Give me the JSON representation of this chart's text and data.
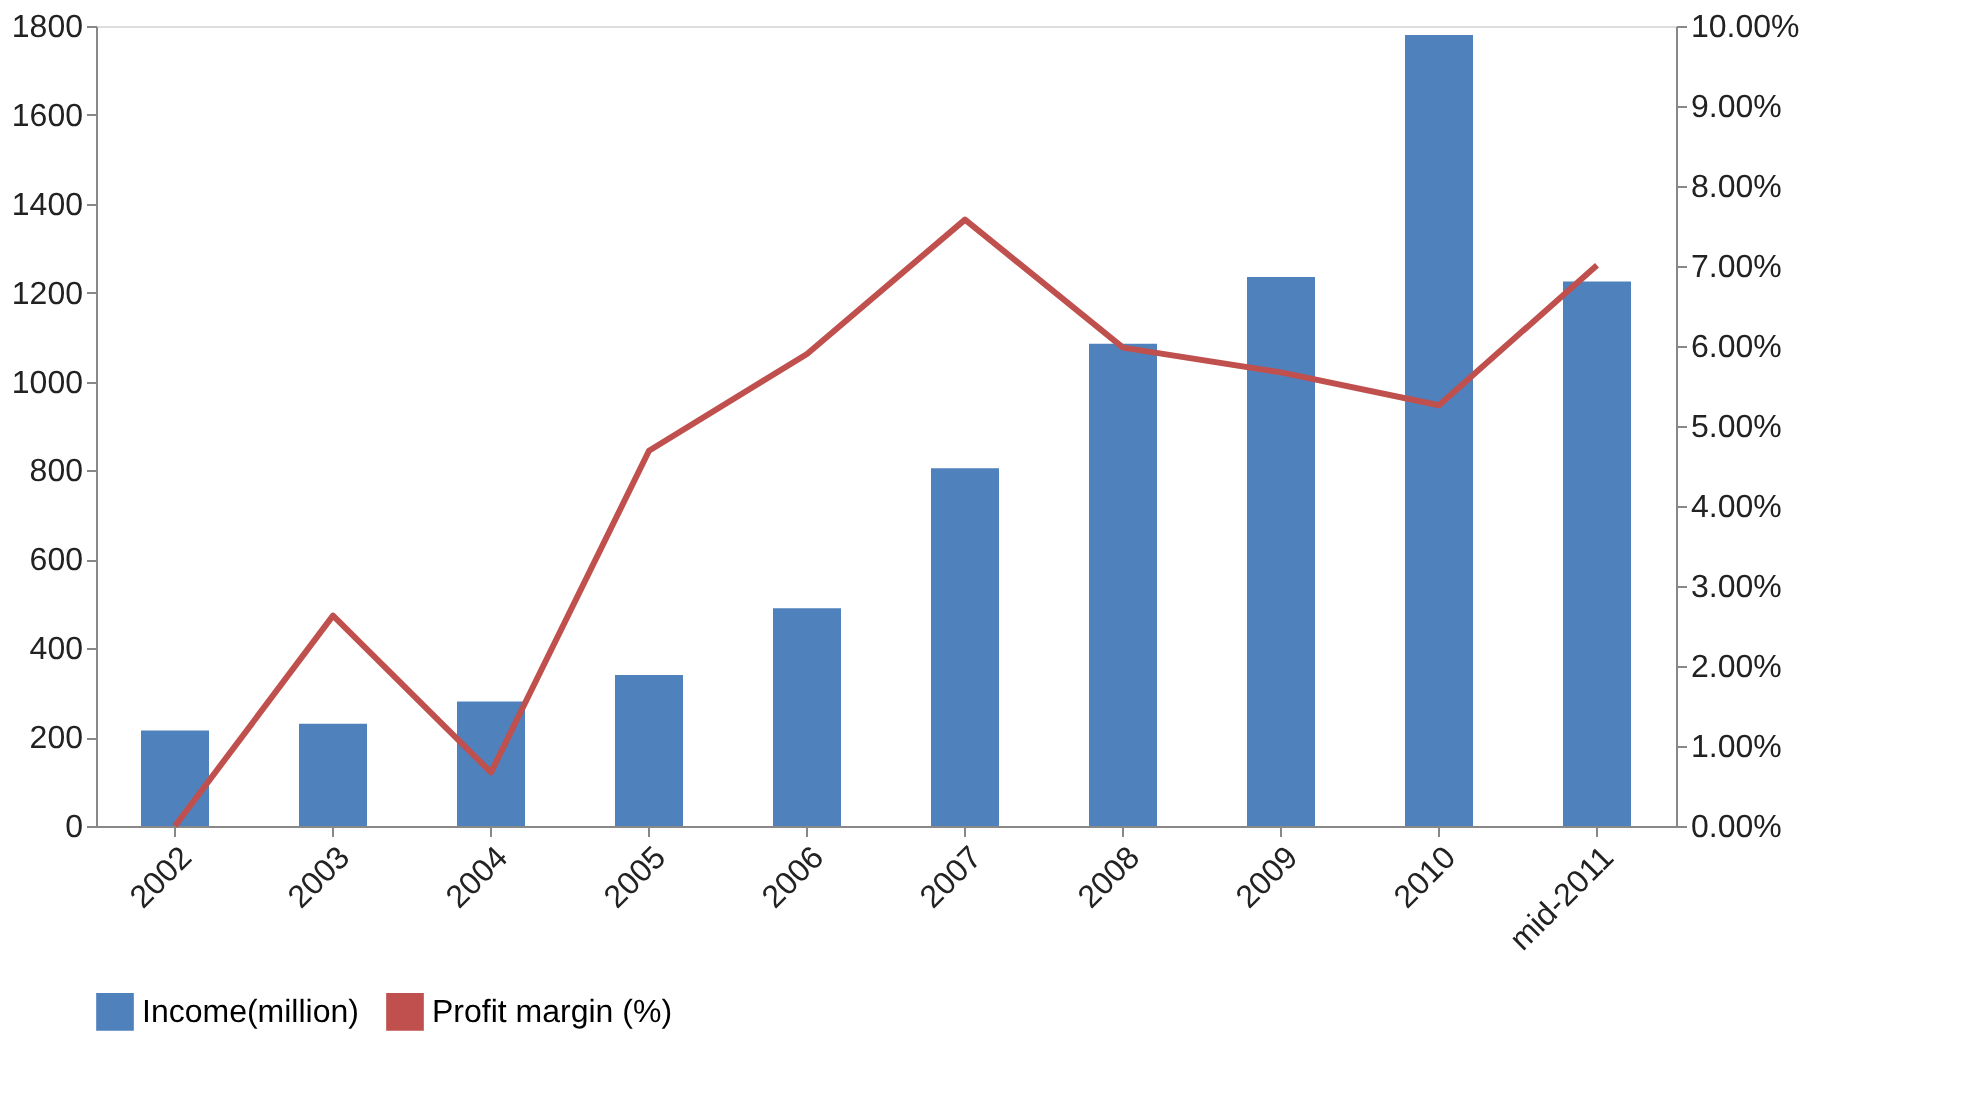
{
  "chart_data": {
    "type": "bar",
    "categories": [
      "2002",
      "2003",
      "2004",
      "2005",
      "2006",
      "2007",
      "2008",
      "2009",
      "2010",
      "mid-2011"
    ],
    "series": [
      {
        "name": "Income(million)",
        "color": "#4f81bd",
        "values": [
          215,
          230,
          280,
          340,
          490,
          805,
          1085,
          1235,
          1780,
          1225
        ]
      },
      {
        "name": "Profit margin (%)",
        "type": "line",
        "axis": "y2",
        "color": "#c0504d",
        "values": [
          0,
          2.63,
          0.67,
          4.69,
          5.9,
          7.58,
          5.98,
          5.67,
          5.26,
          7.01
        ]
      }
    ],
    "ylim": [
      0,
      1800
    ],
    "yticks": [
      0,
      200,
      400,
      600,
      800,
      1000,
      1200,
      1400,
      1600,
      1800
    ],
    "y2lim": [
      0,
      10
    ],
    "y2ticks": [
      {
        "value": 0,
        "label": "0.00%"
      },
      {
        "value": 1,
        "label": "1.00%"
      },
      {
        "value": 2,
        "label": "2.00%"
      },
      {
        "value": 3,
        "label": "3.00%"
      },
      {
        "value": 4,
        "label": "4.00%"
      },
      {
        "value": 5,
        "label": "5.00%"
      },
      {
        "value": 6,
        "label": "6.00%"
      },
      {
        "value": 7,
        "label": "7.00%"
      },
      {
        "value": 8,
        "label": "8.00%"
      },
      {
        "value": 9,
        "label": "9.00%"
      },
      {
        "value": 10,
        "label": "10.00%"
      }
    ],
    "grid": false,
    "legend": "bottom",
    "marker": "none",
    "line_style": "solid"
  }
}
